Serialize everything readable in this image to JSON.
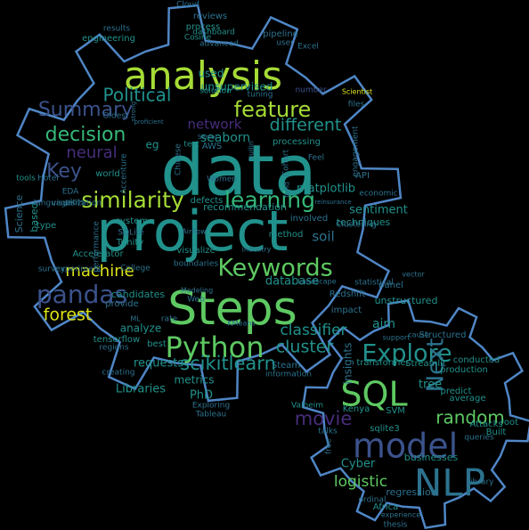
{
  "outline_color": "#4f86c6",
  "palette": {
    "yellow": "#dde318",
    "lime": "#a5db36",
    "green": "#5ec962",
    "teal_green": "#35b779",
    "teal": "#21918c",
    "slate": "#2c728e",
    "indigo": "#3b528b",
    "purple": "#472d7b",
    "deep": "#440154"
  },
  "words": [
    {
      "text": "data",
      "color": "teal"
    },
    {
      "text": "project",
      "color": "teal"
    },
    {
      "text": "Steps",
      "color": "green"
    },
    {
      "text": "analysis",
      "color": "lime"
    },
    {
      "text": "NLP",
      "color": "slate"
    },
    {
      "text": "model",
      "color": "indigo"
    },
    {
      "text": "Python",
      "color": "green"
    },
    {
      "text": "SQL",
      "color": "green"
    },
    {
      "text": "Explore",
      "color": "teal"
    },
    {
      "text": "Keywords",
      "color": "green"
    },
    {
      "text": "pandas",
      "color": "indigo"
    },
    {
      "text": "similarity",
      "color": "lime"
    },
    {
      "text": "learning",
      "color": "teal_green"
    },
    {
      "text": "feature",
      "color": "lime"
    },
    {
      "text": "decision",
      "color": "teal_green"
    },
    {
      "text": "Summary",
      "color": "indigo"
    },
    {
      "text": "Political",
      "color": "teal"
    },
    {
      "text": "different",
      "color": "teal"
    },
    {
      "text": "Key",
      "color": "indigo"
    },
    {
      "text": "neural",
      "color": "purple"
    },
    {
      "text": "network",
      "color": "purple"
    },
    {
      "text": "machine",
      "color": "yellow"
    },
    {
      "text": "forest",
      "color": "yellow"
    },
    {
      "text": "cluster",
      "color": "teal"
    },
    {
      "text": "scikitlearn",
      "color": "teal"
    },
    {
      "text": "classifier",
      "color": "teal"
    },
    {
      "text": "movie",
      "color": "purple"
    },
    {
      "text": "Next",
      "color": "slate"
    },
    {
      "text": "random",
      "color": "green"
    },
    {
      "text": "logistic",
      "color": "green"
    },
    {
      "text": "matplotlib",
      "color": "teal"
    },
    {
      "text": "sentiment",
      "color": "teal"
    },
    {
      "text": "seaborn",
      "color": "teal"
    },
    {
      "text": "unsupervised",
      "color": "teal"
    },
    {
      "text": "used",
      "color": "teal"
    },
    {
      "text": "recommendation",
      "color": "teal"
    },
    {
      "text": "requests",
      "color": "teal"
    },
    {
      "text": "database",
      "color": "teal"
    },
    {
      "text": "techniques",
      "color": "teal"
    },
    {
      "text": "soil",
      "color": "slate"
    },
    {
      "text": "aim",
      "color": "teal"
    },
    {
      "text": "analyze",
      "color": "teal"
    },
    {
      "text": "metrics",
      "color": "teal"
    },
    {
      "text": "PhD",
      "color": "teal"
    },
    {
      "text": "Cyber",
      "color": "teal"
    },
    {
      "text": "businesses",
      "color": "teal"
    },
    {
      "text": "regression",
      "color": "slate"
    },
    {
      "text": "tree",
      "color": "teal"
    },
    {
      "text": "insights",
      "color": "slate"
    },
    {
      "text": "statistical",
      "color": "slate"
    },
    {
      "text": "Libraries",
      "color": "teal"
    },
    {
      "text": "process",
      "color": "teal"
    },
    {
      "text": "tensorflow",
      "color": "teal"
    },
    {
      "text": "engineering",
      "color": "teal"
    },
    {
      "text": "pipeline",
      "color": "slate"
    },
    {
      "text": "reviews",
      "color": "slate"
    },
    {
      "text": "Cloud",
      "color": "slate"
    },
    {
      "text": "dashboard",
      "color": "teal"
    },
    {
      "text": "advanced",
      "color": "slate"
    },
    {
      "text": "user",
      "color": "slate"
    },
    {
      "text": "Excel",
      "color": "slate"
    },
    {
      "text": "solution",
      "color": "teal"
    },
    {
      "text": "tuning",
      "color": "slate"
    },
    {
      "text": "number",
      "color": "indigo"
    },
    {
      "text": "Scientist",
      "color": "yellow"
    },
    {
      "text": "files",
      "color": "slate"
    },
    {
      "text": "Oldest",
      "color": "slate"
    },
    {
      "text": "eg",
      "color": "teal"
    },
    {
      "text": "test",
      "color": "teal"
    },
    {
      "text": "AWS",
      "color": "slate"
    },
    {
      "text": "Chinese",
      "color": "slate"
    },
    {
      "text": "processing",
      "color": "teal"
    },
    {
      "text": "Cohort",
      "color": "slate"
    },
    {
      "text": "Feel",
      "color": "slate"
    },
    {
      "text": "world",
      "color": "teal"
    },
    {
      "text": "Accenture",
      "color": "slate"
    },
    {
      "text": "Women",
      "color": "slate"
    },
    {
      "text": "API",
      "color": "slate"
    },
    {
      "text": "economic",
      "color": "slate"
    },
    {
      "text": "engagement",
      "color": "slate"
    },
    {
      "text": "EDA",
      "color": "slate"
    },
    {
      "text": "plots",
      "color": "slate"
    },
    {
      "text": "tools",
      "color": "teal"
    },
    {
      "text": "Hotel",
      "color": "slate"
    },
    {
      "text": "Science",
      "color": "slate"
    },
    {
      "text": "based",
      "color": "teal"
    },
    {
      "text": "type",
      "color": "teal"
    },
    {
      "text": "visualization",
      "color": "slate"
    },
    {
      "text": "languages",
      "color": "slate"
    },
    {
      "text": "system",
      "color": "teal"
    },
    {
      "text": "SQLite",
      "color": "slate"
    },
    {
      "text": "Trinity",
      "color": "teal"
    },
    {
      "text": "Accelerator",
      "color": "teal"
    },
    {
      "text": "visualize",
      "color": "teal"
    },
    {
      "text": "College",
      "color": "slate"
    },
    {
      "text": "defects",
      "color": "teal"
    },
    {
      "text": "method",
      "color": "teal"
    },
    {
      "text": "involved",
      "color": "slate"
    },
    {
      "text": "Clustering",
      "color": "slate"
    },
    {
      "text": "industry",
      "color": "slate"
    },
    {
      "text": "Web",
      "color": "slate"
    },
    {
      "text": "candidates",
      "color": "teal"
    },
    {
      "text": "rate",
      "color": "slate"
    },
    {
      "text": "best",
      "color": "teal"
    },
    {
      "text": "Redshift",
      "color": "slate"
    },
    {
      "text": "panel",
      "color": "slate"
    },
    {
      "text": "provide",
      "color": "slate"
    },
    {
      "text": "impact",
      "color": "slate"
    },
    {
      "text": "unstructured",
      "color": "teal"
    },
    {
      "text": "Structured",
      "color": "slate"
    },
    {
      "text": "cause",
      "color": "slate"
    },
    {
      "text": "support",
      "color": "slate"
    },
    {
      "text": "conducted",
      "color": "teal"
    },
    {
      "text": "production",
      "color": "teal"
    },
    {
      "text": "transformer",
      "color": "teal"
    },
    {
      "text": "Streamlit",
      "color": "teal"
    },
    {
      "text": "average",
      "color": "teal"
    },
    {
      "text": "predict",
      "color": "teal"
    },
    {
      "text": "Attacks",
      "color": "teal"
    },
    {
      "text": "root",
      "color": "teal"
    },
    {
      "text": "Built",
      "color": "teal"
    },
    {
      "text": "queries",
      "color": "slate"
    },
    {
      "text": "library",
      "color": "slate"
    },
    {
      "text": "Kenya",
      "color": "teal"
    },
    {
      "text": "SVM",
      "color": "teal"
    },
    {
      "text": "sqlite3",
      "color": "teal"
    },
    {
      "text": "Valheim",
      "color": "teal"
    },
    {
      "text": "Steam",
      "color": "slate"
    },
    {
      "text": "information",
      "color": "slate"
    },
    {
      "text": "Exploring",
      "color": "slate"
    },
    {
      "text": "Tableau",
      "color": "slate"
    },
    {
      "text": "creating",
      "color": "slate"
    },
    {
      "text": "regions",
      "color": "slate"
    },
    {
      "text": "survey",
      "color": "slate"
    },
    {
      "text": "experiment",
      "color": "slate"
    },
    {
      "text": "Africa",
      "color": "teal"
    },
    {
      "text": "ordinal",
      "color": "slate"
    },
    {
      "text": "experience",
      "color": "slate"
    },
    {
      "text": "thesis",
      "color": "slate"
    },
    {
      "text": "talks",
      "color": "slate"
    },
    {
      "text": "free",
      "color": "slate"
    },
    {
      "text": "Cosine",
      "color": "teal"
    },
    {
      "text": "results",
      "color": "slate"
    },
    {
      "text": "boundaries",
      "color": "slate"
    },
    {
      "text": "Modeling",
      "color": "slate"
    },
    {
      "text": "performance",
      "color": "slate"
    },
    {
      "text": "Airflow",
      "color": "slate"
    },
    {
      "text": "Senior",
      "color": "slate"
    },
    {
      "text": "proficient",
      "color": "slate"
    },
    {
      "text": "strong",
      "color": "slate"
    },
    {
      "text": "fund",
      "color": "slate"
    },
    {
      "text": "builin",
      "color": "slate"
    },
    {
      "text": "ML",
      "color": "slate"
    },
    {
      "text": "KMeans",
      "color": "slate"
    },
    {
      "text": "Landscape",
      "color": "slate"
    },
    {
      "text": "vector",
      "color": "slate"
    },
    {
      "text": "reinsurance",
      "color": "slate"
    }
  ]
}
